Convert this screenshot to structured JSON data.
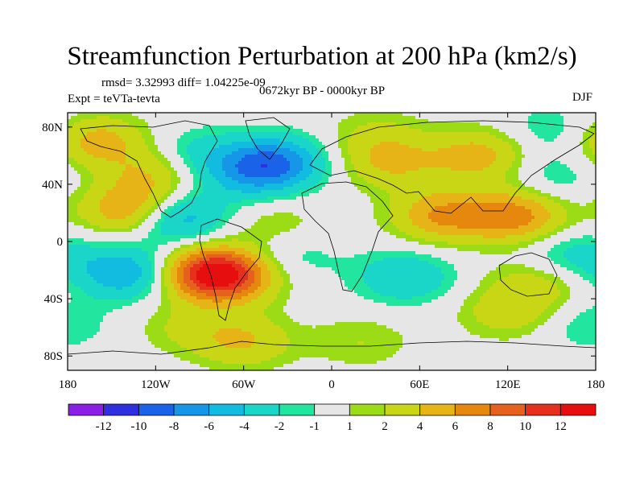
{
  "chart_data": {
    "type": "heatmap",
    "title": "Streamfunction Perturbation at 200 hPa (km2/s)",
    "stats_line": "rmsd= 3.32993 diff= 1.04225e-09",
    "experiment": "Expt = teVTa-tevta",
    "period": "0672kyr BP - 0000kyr BP",
    "season": "DJF",
    "x_ticks": [
      {
        "value": -180,
        "label": "180"
      },
      {
        "value": -120,
        "label": "120W"
      },
      {
        "value": -60,
        "label": "60W"
      },
      {
        "value": 0,
        "label": "0"
      },
      {
        "value": 60,
        "label": "60E"
      },
      {
        "value": 120,
        "label": "120E"
      },
      {
        "value": 180,
        "label": "180"
      }
    ],
    "y_ticks": [
      {
        "value": 80,
        "label": "80N"
      },
      {
        "value": 40,
        "label": "40N"
      },
      {
        "value": 0,
        "label": "0"
      },
      {
        "value": -40,
        "label": "40S"
      },
      {
        "value": -80,
        "label": "80S"
      }
    ],
    "xlim": [
      -180,
      180
    ],
    "ylim": [
      -90,
      90
    ],
    "colorbar": {
      "levels": [
        -12,
        -10,
        -8,
        -6,
        -4,
        -2,
        -1,
        1,
        2,
        4,
        6,
        8,
        10,
        12
      ],
      "labels": [
        "-12",
        "-10",
        "-8",
        "-6",
        "-4",
        "-2",
        "-1",
        "1",
        "2",
        "4",
        "6",
        "8",
        "10",
        "12"
      ],
      "colors": [
        "#8a1fe6",
        "#2f2fe0",
        "#1a63e8",
        "#1596e6",
        "#12bce0",
        "#1ad6c8",
        "#22e6a0",
        "#e6e6e6",
        "#9cdc16",
        "#c8d616",
        "#e6b416",
        "#e6880e",
        "#e6601e",
        "#e6301e",
        "#e60e0e"
      ]
    },
    "anomalies": [
      {
        "lon": -135,
        "lat": 22,
        "value": 7.5
      },
      {
        "lon": -160,
        "lat": 70,
        "value": 5
      },
      {
        "lon": -82,
        "lat": -22,
        "value": 10.5
      },
      {
        "lon": -70,
        "lat": -25,
        "value": 5
      },
      {
        "lon": -140,
        "lat": -22,
        "value": -6
      },
      {
        "lon": -108,
        "lat": 17,
        "value": -7
      },
      {
        "lon": -95,
        "lat": 60,
        "value": -3
      },
      {
        "lon": -40,
        "lat": 55,
        "value": -8
      },
      {
        "lon": -60,
        "lat": 45,
        "value": -3
      },
      {
        "lon": -120,
        "lat": 48,
        "value": 4
      },
      {
        "lon": -40,
        "lat": 12,
        "value": 2
      },
      {
        "lon": -30,
        "lat": -10,
        "value": -2
      },
      {
        "lon": 40,
        "lat": 55,
        "value": 4
      },
      {
        "lon": 100,
        "lat": 60,
        "value": 5
      },
      {
        "lon": 75,
        "lat": 18,
        "value": 6
      },
      {
        "lon": 125,
        "lat": 18,
        "value": 7
      },
      {
        "lon": 50,
        "lat": -25,
        "value": -4
      },
      {
        "lon": 140,
        "lat": -30,
        "value": 3
      },
      {
        "lon": 165,
        "lat": -10,
        "value": -3
      },
      {
        "lon": 120,
        "lat": -50,
        "value": 3
      },
      {
        "lon": -60,
        "lat": -70,
        "value": 4
      },
      {
        "lon": -100,
        "lat": -60,
        "value": 2
      },
      {
        "lon": 20,
        "lat": -70,
        "value": 2
      },
      {
        "lon": 175,
        "lat": -58,
        "value": -2
      },
      {
        "lon": 150,
        "lat": 45,
        "value": -2
      },
      {
        "lon": 30,
        "lat": 75,
        "value": 2
      },
      {
        "lon": 150,
        "lat": 78,
        "value": -2
      }
    ]
  }
}
